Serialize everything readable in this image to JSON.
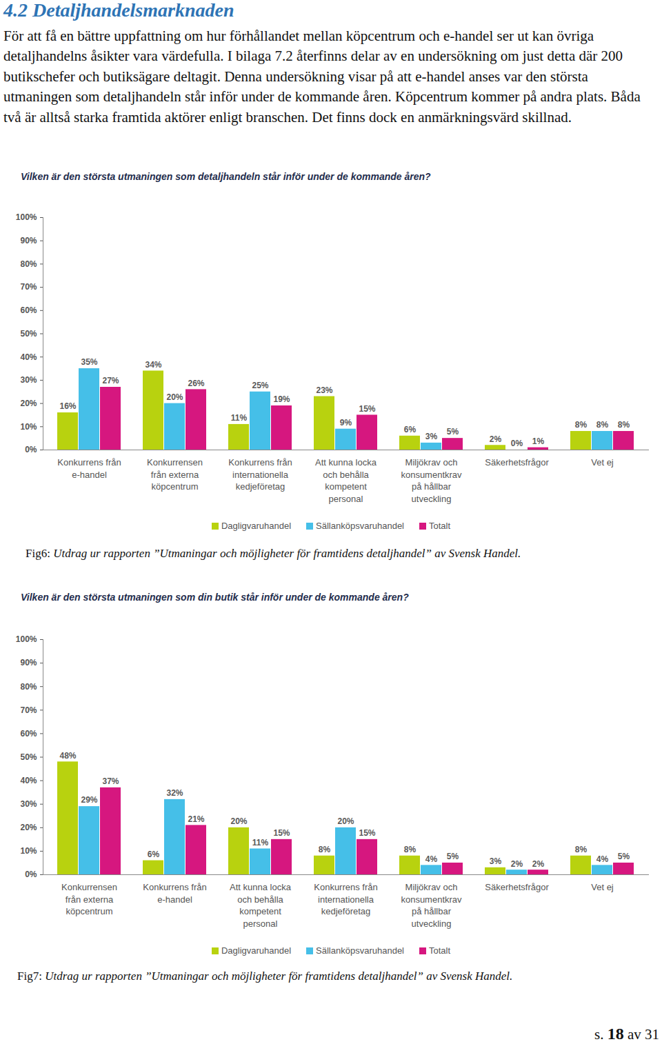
{
  "heading": "4.2 Detaljhandelsmarknaden",
  "paragraph": "För att få en bättre uppfattning om hur förhållandet mellan köpcentrum och e-handel ser ut kan övriga detaljhandelns åsikter vara värdefulla. I bilaga 7.2 återfinns delar av en undersökning om just detta där 200 butikschefer och butiksägare deltagit. Denna undersökning visar på att e-handel anses var den största utmaningen som detaljhandeln står inför under de kommande åren. Köpcentrum kommer på andra plats. Båda två är alltså starka framtida aktörer enligt branschen. Det finns dock en anmärkningsvärd skillnad.",
  "chart_data": [
    {
      "type": "bar",
      "title": "Vilken är den största utmaningen som detaljhandeln står inför under de kommande åren?",
      "categories": [
        "Konkurrens från\ne-handel",
        "Konkurrensen\nfrån externa\nköpcentrum",
        "Konkurrens från\ninternationella\nkedjeföretag",
        "Att kunna locka\noch behålla\nkompetent\npersonal",
        "Miljökrav och\nkonsumentkrav\npå hållbar\nutveckling",
        "Säkerhetsfrågor",
        "Vet ej"
      ],
      "series": [
        {
          "name": "Dagligvaruhandel",
          "color": "#b8d20f",
          "values": [
            16,
            34,
            11,
            23,
            6,
            2,
            8
          ],
          "value_labels": [
            "16%",
            "34%",
            "11%",
            "23%",
            "6%",
            "2%",
            "8%"
          ]
        },
        {
          "name": "Sällanköpsvaruhandel",
          "color": "#45bfe8",
          "values": [
            35,
            20,
            25,
            9,
            3,
            0,
            8
          ],
          "value_labels": [
            "35%",
            "20%",
            "25%",
            "9%",
            "3%",
            "0%",
            "8%"
          ]
        },
        {
          "name": "Totalt",
          "color": "#d6177f",
          "values": [
            27,
            26,
            19,
            15,
            5,
            1,
            8
          ],
          "value_labels": [
            "27%",
            "26%",
            "19%",
            "15%",
            "5%",
            "1%",
            "8%"
          ]
        }
      ],
      "ylim": [
        0,
        100
      ],
      "yticks": [
        {
          "value": 0,
          "label": "0%"
        },
        {
          "value": 10,
          "label": "10%"
        },
        {
          "value": 20,
          "label": "20%"
        },
        {
          "value": 30,
          "label": "30%"
        },
        {
          "value": 40,
          "label": "40%"
        },
        {
          "value": 50,
          "label": "50%"
        },
        {
          "value": 60,
          "label": "60%"
        },
        {
          "value": 70,
          "label": "70%"
        },
        {
          "value": 80,
          "label": "80%"
        },
        {
          "value": 90,
          "label": "90%"
        },
        {
          "value": 100,
          "label": "100%"
        }
      ],
      "grid": false,
      "data_labels": true,
      "legend": "bottom"
    },
    {
      "type": "bar",
      "title": "Vilken är den största utmaningen som din butik står inför under de kommande åren?",
      "categories": [
        "Konkurrensen\nfrån externa\nköpcentrum",
        "Konkurrens från\ne-handel",
        "Att kunna locka\noch behålla\nkompetent\npersonal",
        "Konkurrens från\ninternationella\nkedjeföretag",
        "Miljökrav och\nkonsumentkrav\npå hållbar\nutveckling",
        "Säkerhetsfrågor",
        "Vet ej"
      ],
      "series": [
        {
          "name": "Dagligvaruhandel",
          "color": "#b8d20f",
          "values": [
            48,
            6,
            20,
            8,
            8,
            3,
            8
          ],
          "value_labels": [
            "48%",
            "6%",
            "20%",
            "8%",
            "8%",
            "3%",
            "8%"
          ]
        },
        {
          "name": "Sällanköpsvaruhandel",
          "color": "#45bfe8",
          "values": [
            29,
            32,
            11,
            20,
            4,
            2,
            4
          ],
          "value_labels": [
            "29%",
            "32%",
            "11%",
            "20%",
            "4%",
            "2%",
            "4%"
          ]
        },
        {
          "name": "Totalt",
          "color": "#d6177f",
          "values": [
            37,
            21,
            15,
            15,
            5,
            2,
            5
          ],
          "value_labels": [
            "37%",
            "21%",
            "15%",
            "15%",
            "5%",
            "2%",
            "5%"
          ]
        }
      ],
      "ylim": [
        0,
        100
      ],
      "yticks": [
        {
          "value": 0,
          "label": "0%"
        },
        {
          "value": 10,
          "label": "10%"
        },
        {
          "value": 20,
          "label": "20%"
        },
        {
          "value": 30,
          "label": "30%"
        },
        {
          "value": 40,
          "label": "40%"
        },
        {
          "value": 50,
          "label": "50%"
        },
        {
          "value": 60,
          "label": "60%"
        },
        {
          "value": 70,
          "label": "70%"
        },
        {
          "value": 80,
          "label": "80%"
        },
        {
          "value": 90,
          "label": "90%"
        },
        {
          "value": 100,
          "label": "100%"
        }
      ],
      "grid": false,
      "data_labels": true,
      "legend": "bottom"
    }
  ],
  "captions": [
    {
      "label": "Fig6:",
      "text": "Utdrag ur rapporten ”Utmaningar och möjligheter för framtidens detaljhandel” av Svensk Handel."
    },
    {
      "label": "Fig7:",
      "text": "Utdrag ur rapporten ”Utmaningar och möjligheter för framtidens detaljhandel” av Svensk Handel."
    }
  ],
  "page": {
    "before": "s.",
    "current": "18",
    "between": "av",
    "total": "31"
  }
}
